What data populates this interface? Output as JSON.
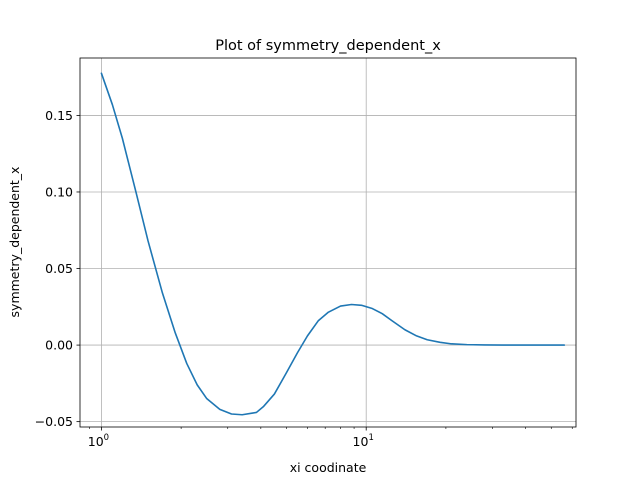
{
  "chart_data": {
    "type": "line",
    "title": "Plot of symmetry_dependent_x",
    "xlabel": "xi coodinate",
    "ylabel": "symmetry_dependent_x",
    "x_scale": "log",
    "xlim": [
      0.83,
      62
    ],
    "ylim": [
      -0.0535,
      0.1875
    ],
    "grid": true,
    "x_ticks": [
      {
        "value": 1,
        "base": "10",
        "exp": "0"
      },
      {
        "value": 10,
        "base": "10",
        "exp": "1"
      }
    ],
    "y_ticks": [
      {
        "value": -0.05,
        "label": "−0.05"
      },
      {
        "value": 0.0,
        "label": "0.00"
      },
      {
        "value": 0.05,
        "label": "0.05"
      },
      {
        "value": 0.1,
        "label": "0.10"
      },
      {
        "value": 0.15,
        "label": "0.15"
      }
    ],
    "series": [
      {
        "color": "#1f77b4",
        "x": [
          1.0,
          1.1,
          1.2,
          1.35,
          1.5,
          1.7,
          1.9,
          2.1,
          2.3,
          2.5,
          2.8,
          3.1,
          3.4,
          3.7,
          3.85,
          4.1,
          4.5,
          5.0,
          5.5,
          6.0,
          6.6,
          7.2,
          8.0,
          8.8,
          9.6,
          10.5,
          11.5,
          12.5,
          14.0,
          15.5,
          17.0,
          19.0,
          21.0,
          24.0,
          28.0,
          33.0,
          40.0,
          48.0,
          56.0
        ],
        "y": [
          0.1775,
          0.157,
          0.135,
          0.1,
          0.068,
          0.034,
          0.008,
          -0.012,
          -0.026,
          -0.035,
          -0.042,
          -0.045,
          -0.0455,
          -0.0445,
          -0.044,
          -0.04,
          -0.032,
          -0.018,
          -0.005,
          0.006,
          0.016,
          0.0215,
          0.0255,
          0.0265,
          0.026,
          0.024,
          0.0205,
          0.016,
          0.01,
          0.006,
          0.0035,
          0.0018,
          0.0008,
          0.0003,
          0.0001,
          0.0,
          0.0,
          0.0,
          0.0
        ]
      }
    ]
  }
}
